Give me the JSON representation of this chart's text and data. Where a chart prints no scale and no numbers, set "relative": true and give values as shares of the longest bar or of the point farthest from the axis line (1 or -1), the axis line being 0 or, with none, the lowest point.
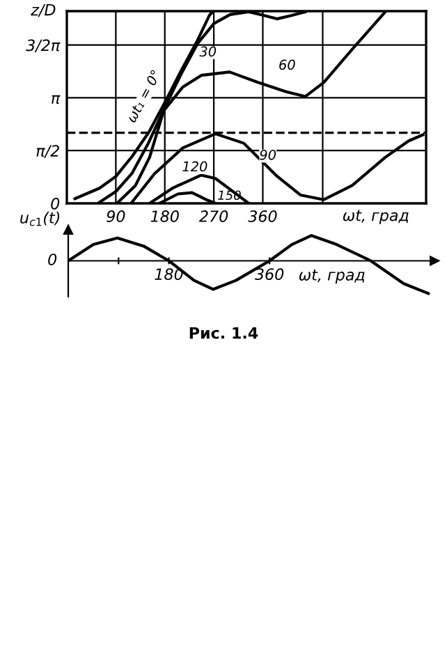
{
  "chart_data": [
    {
      "type": "line",
      "xlabel": "ωt, град",
      "ylabel": "z/D",
      "xlim": [
        0,
        660
      ],
      "ylim": [
        0,
        5.72
      ],
      "xticks": [
        90,
        180,
        270,
        360,
        {
          "value": 470,
          "label": null
        }
      ],
      "yticks": [
        0,
        {
          "value": 1.5708,
          "label": "π/2"
        },
        {
          "value": 3.1416,
          "label": "π"
        },
        {
          "value": 4.7124,
          "label": "3/2π"
        }
      ],
      "grid": true,
      "line_style": "solid",
      "marker": "none",
      "ref_lines": [
        {
          "axis": "y",
          "value": 2.1,
          "line_style": "dashed",
          "color": "#000000"
        }
      ],
      "series": [
        {
          "name": "ωt₁ = 0°",
          "color": "#000000",
          "x": [
            15,
            60,
            90,
            120,
            150,
            180,
            210,
            240,
            262,
            268
          ],
          "values": [
            0.14,
            0.45,
            0.8,
            1.4,
            2.1,
            3.0,
            3.95,
            4.85,
            5.6,
            5.7
          ]
        },
        {
          "name": "30",
          "color": "#000000",
          "x": [
            57,
            90,
            120,
            150,
            180,
            210,
            240,
            270,
            300,
            334,
            360,
            386,
            410,
            438
          ],
          "values": [
            0,
            0.35,
            0.9,
            1.8,
            2.85,
            3.85,
            4.75,
            5.35,
            5.62,
            5.7,
            5.6,
            5.49,
            5.58,
            5.7
          ]
        },
        {
          "name": "60",
          "color": "#000000",
          "x": [
            92,
            126,
            152,
            178,
            213,
            247,
            299,
            351,
            403,
            438,
            472,
            524,
            585
          ],
          "values": [
            0,
            0.53,
            1.37,
            2.76,
            3.46,
            3.81,
            3.91,
            3.6,
            3.32,
            3.18,
            3.6,
            4.58,
            5.7
          ]
        },
        {
          "name": "90",
          "color": "#000000",
          "x": [
            118,
            161,
            213,
            273,
            325,
            386,
            429,
            472,
            524,
            585,
            628,
            654
          ],
          "values": [
            0,
            0.88,
            1.65,
            2.07,
            1.79,
            0.81,
            0.25,
            0.11,
            0.53,
            1.37,
            1.86,
            2.04
          ]
        },
        {
          "name": "120",
          "color": "#000000",
          "x": [
            152,
            195,
            247,
            273,
            308,
            334
          ],
          "values": [
            0,
            0.46,
            0.84,
            0.74,
            0.32,
            0
          ]
        },
        {
          "name": "150",
          "color": "#000000",
          "x": [
            170,
            204,
            230,
            256,
            273
          ],
          "values": [
            0,
            0.28,
            0.32,
            0.11,
            0
          ]
        }
      ]
    },
    {
      "type": "line",
      "relative": true,
      "xlabel": "ωt, град",
      "ylabel": "u$_{c1}$(t)",
      "xlim": [
        0,
        655
      ],
      "xticks": [
        {
          "value": 90,
          "label": null
        },
        180,
        360
      ],
      "line_style": "solid",
      "marker": "none",
      "annotations": [
        "0",
        "Рис. 1.4"
      ],
      "series": [
        {
          "color": "#000000",
          "x": [
            0,
            45,
            88,
            135,
            180,
            225,
            259,
            300,
            360,
            400,
            435,
            480,
            541,
            600,
            644
          ],
          "values": [
            0,
            0.5,
            0.7,
            0.45,
            0,
            -0.6,
            -0.875,
            -0.6,
            0,
            0.5,
            0.775,
            0.5,
            0,
            -0.7,
            -1
          ]
        }
      ]
    }
  ]
}
